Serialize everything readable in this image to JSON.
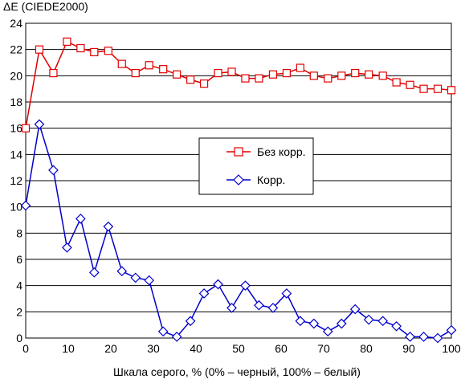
{
  "chart_data": {
    "type": "line",
    "title": "",
    "ylabel": "ΔE (CIEDE2000)",
    "xlabel": "Шкала серого, % (0% – черный, 100% – белый)",
    "xlim": [
      0,
      100
    ],
    "ylim": [
      0,
      24
    ],
    "xticks": [
      0,
      10,
      20,
      30,
      40,
      50,
      60,
      70,
      80,
      90,
      100
    ],
    "yticks": [
      0,
      2,
      4,
      6,
      8,
      10,
      12,
      14,
      16,
      18,
      20,
      22,
      24
    ],
    "grid": "horizontal",
    "legend_position": "center-right",
    "x": [
      0,
      3.2,
      6.5,
      9.7,
      12.9,
      16.1,
      19.4,
      22.6,
      25.8,
      29.0,
      32.3,
      35.5,
      38.7,
      41.9,
      45.2,
      48.4,
      51.6,
      54.8,
      58.1,
      61.3,
      64.5,
      67.7,
      71.0,
      74.2,
      77.4,
      80.6,
      83.9,
      87.1,
      90.3,
      93.5,
      96.8,
      100
    ],
    "series": [
      {
        "name": "Без корр.",
        "color": "#e00000",
        "marker": "square",
        "values": [
          16.0,
          22.0,
          20.2,
          22.6,
          22.1,
          21.8,
          21.9,
          20.9,
          20.2,
          20.8,
          20.5,
          20.1,
          19.7,
          19.4,
          20.2,
          20.3,
          19.8,
          19.8,
          20.1,
          20.2,
          20.6,
          20.0,
          19.8,
          20.0,
          20.2,
          20.1,
          20.0,
          19.5,
          19.3,
          19.0,
          19.0,
          18.9
        ]
      },
      {
        "name": "Корр.",
        "color": "#0000cc",
        "marker": "diamond",
        "values": [
          10.1,
          16.3,
          12.8,
          6.9,
          9.1,
          5.0,
          8.5,
          5.1,
          4.6,
          4.4,
          0.5,
          0.1,
          1.3,
          3.4,
          4.1,
          2.3,
          4.0,
          2.5,
          2.3,
          3.4,
          1.3,
          1.1,
          0.5,
          1.1,
          2.2,
          1.4,
          1.3,
          0.9,
          0.1,
          0.1,
          0.0,
          0.6
        ]
      }
    ]
  }
}
